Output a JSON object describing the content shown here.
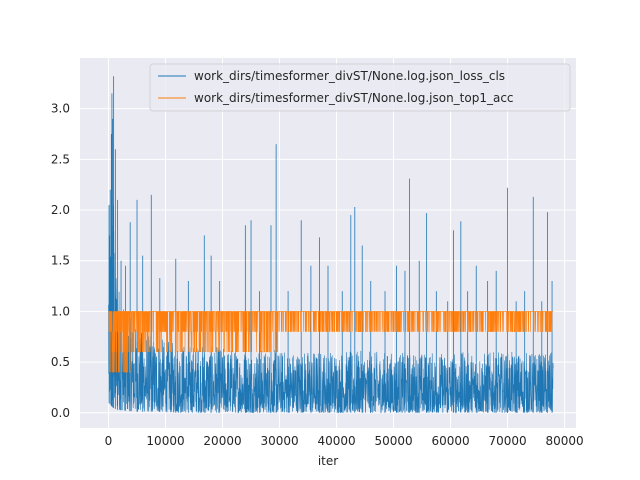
{
  "chart_data": {
    "type": "line",
    "title": "",
    "xlabel": "iter",
    "ylabel": "",
    "xlim": [
      -5000,
      82000
    ],
    "ylim": [
      -0.15,
      3.5
    ],
    "xticks": [
      0,
      10000,
      20000,
      30000,
      40000,
      50000,
      60000,
      70000,
      80000
    ],
    "yticks": [
      0.0,
      0.5,
      1.0,
      1.5,
      2.0,
      2.5,
      3.0
    ],
    "xtick_labels": [
      "0",
      "10000",
      "20000",
      "30000",
      "40000",
      "50000",
      "60000",
      "70000",
      "80000"
    ],
    "ytick_labels": [
      "0.0",
      "0.5",
      "1.0",
      "1.5",
      "2.0",
      "2.5",
      "3.0"
    ],
    "grid": true,
    "legend_position": "upper-right",
    "background": "#eaeaf2",
    "series": [
      {
        "name": "work_dirs/timesformer_divST/None.log.json_loss_cls",
        "color": "#1f77b4",
        "base_envelope": {
          "x": [
            0,
            800,
            1500,
            3000,
            5000,
            8000,
            12000,
            20000,
            30000,
            40000,
            50000,
            60000,
            70000,
            78000
          ],
          "low": [
            0.1,
            0.05,
            0.03,
            0.02,
            0.01,
            0.01,
            0.0,
            0.0,
            0.0,
            0.0,
            0.0,
            0.0,
            0.0,
            0.0
          ],
          "high": [
            2.0,
            2.4,
            1.4,
            1.0,
            0.85,
            0.75,
            0.7,
            0.65,
            0.62,
            0.62,
            0.6,
            0.6,
            0.6,
            0.6
          ]
        },
        "spikes": [
          {
            "x": 100,
            "y": 2.05
          },
          {
            "x": 300,
            "y": 2.2
          },
          {
            "x": 500,
            "y": 2.75
          },
          {
            "x": 600,
            "y": 3.15
          },
          {
            "x": 750,
            "y": 2.9
          },
          {
            "x": 900,
            "y": 3.32
          },
          {
            "x": 1200,
            "y": 2.6
          },
          {
            "x": 1600,
            "y": 2.1
          },
          {
            "x": 2200,
            "y": 1.5
          },
          {
            "x": 3000,
            "y": 1.45
          },
          {
            "x": 3800,
            "y": 1.88
          },
          {
            "x": 5000,
            "y": 2.1
          },
          {
            "x": 6000,
            "y": 1.55
          },
          {
            "x": 7500,
            "y": 2.15
          },
          {
            "x": 9000,
            "y": 1.33
          },
          {
            "x": 11800,
            "y": 1.52
          },
          {
            "x": 14000,
            "y": 1.3
          },
          {
            "x": 16800,
            "y": 1.75
          },
          {
            "x": 18000,
            "y": 1.55
          },
          {
            "x": 19500,
            "y": 1.3
          },
          {
            "x": 24000,
            "y": 1.85
          },
          {
            "x": 25000,
            "y": 1.9
          },
          {
            "x": 26500,
            "y": 1.2
          },
          {
            "x": 28500,
            "y": 1.85
          },
          {
            "x": 29400,
            "y": 2.65
          },
          {
            "x": 31500,
            "y": 1.2
          },
          {
            "x": 33800,
            "y": 1.9
          },
          {
            "x": 35500,
            "y": 1.45
          },
          {
            "x": 37000,
            "y": 1.73
          },
          {
            "x": 38500,
            "y": 1.45
          },
          {
            "x": 41000,
            "y": 1.2
          },
          {
            "x": 42500,
            "y": 1.95
          },
          {
            "x": 43200,
            "y": 2.03
          },
          {
            "x": 44500,
            "y": 1.65
          },
          {
            "x": 46000,
            "y": 1.3
          },
          {
            "x": 48500,
            "y": 1.2
          },
          {
            "x": 50500,
            "y": 1.45
          },
          {
            "x": 52000,
            "y": 1.4
          },
          {
            "x": 52800,
            "y": 2.31
          },
          {
            "x": 54500,
            "y": 1.5
          },
          {
            "x": 55800,
            "y": 1.97
          },
          {
            "x": 57500,
            "y": 1.2
          },
          {
            "x": 59500,
            "y": 1.1
          },
          {
            "x": 60500,
            "y": 1.8
          },
          {
            "x": 61800,
            "y": 1.89
          },
          {
            "x": 63000,
            "y": 1.2
          },
          {
            "x": 64500,
            "y": 1.45
          },
          {
            "x": 66500,
            "y": 1.3
          },
          {
            "x": 68000,
            "y": 1.4
          },
          {
            "x": 70000,
            "y": 2.22
          },
          {
            "x": 71500,
            "y": 1.1
          },
          {
            "x": 73000,
            "y": 1.2
          },
          {
            "x": 74500,
            "y": 2.13
          },
          {
            "x": 76000,
            "y": 1.1
          },
          {
            "x": 77000,
            "y": 1.98
          },
          {
            "x": 77800,
            "y": 1.3
          }
        ]
      },
      {
        "name": "work_dirs/timesformer_divST/None.log.json_top1_acc",
        "color": "#ff7f0e",
        "levels": [
          1.0,
          0.8,
          0.6,
          0.4,
          0.2
        ],
        "band": {
          "x": [
            0,
            1500,
            4000,
            10000,
            30000,
            50000,
            78000
          ],
          "low": [
            0.2,
            0.4,
            0.4,
            0.6,
            0.6,
            0.8,
            0.8
          ],
          "high": [
            1.0,
            1.0,
            1.0,
            1.0,
            1.0,
            1.0,
            1.0
          ]
        }
      }
    ],
    "x_max_iter": 78000
  }
}
